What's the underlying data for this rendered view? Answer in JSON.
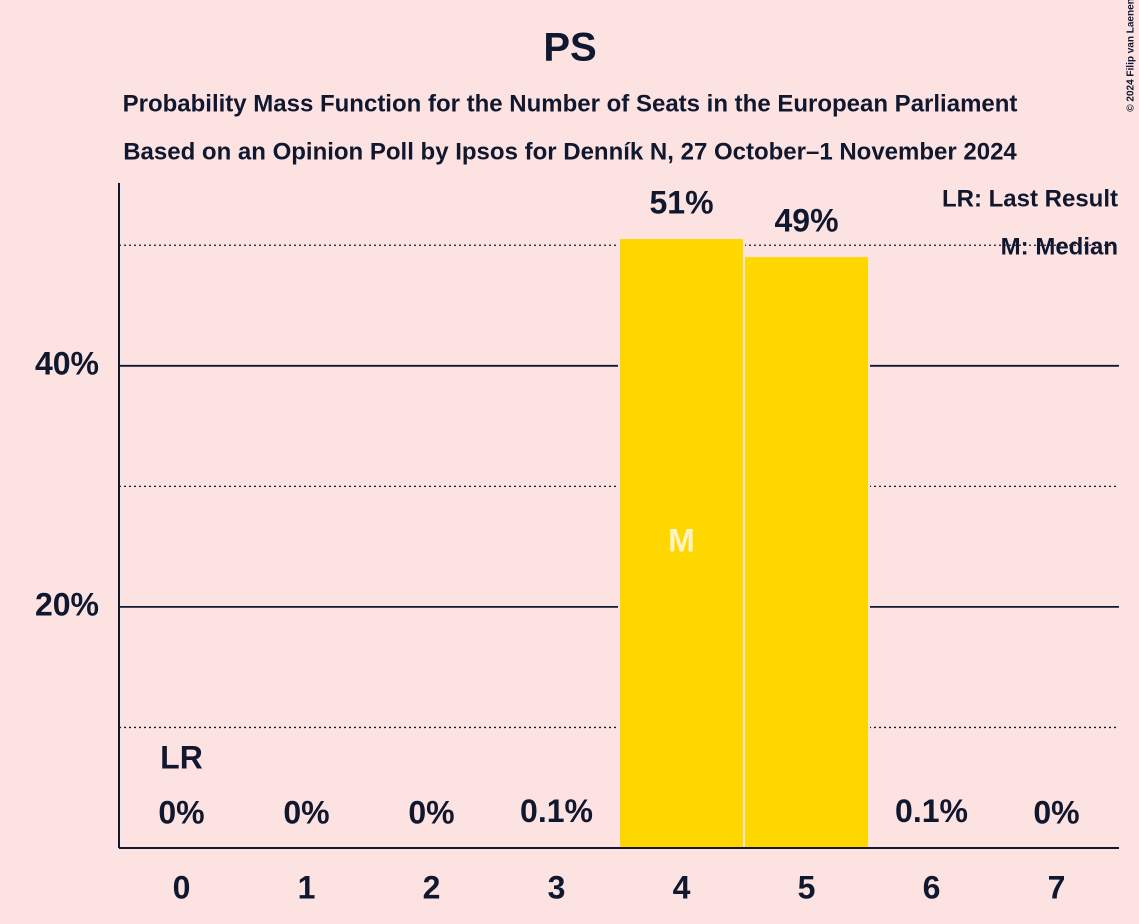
{
  "chart_data": {
    "type": "bar",
    "title": "PS",
    "subtitles": [
      "Probability Mass Function for the Number of Seats in the European Parliament",
      "Based on an Opinion Poll by Ipsos for Denník N, 27 October–1 November 2024"
    ],
    "categories": [
      "0",
      "1",
      "2",
      "3",
      "4",
      "5",
      "6",
      "7"
    ],
    "values": [
      0,
      0,
      0,
      0.1,
      50.6,
      49.1,
      0.1,
      0
    ],
    "value_labels": [
      "0%",
      "0%",
      "0%",
      "0.1%",
      "51%",
      "49%",
      "0.1%",
      "0%"
    ],
    "color": "#FFD700",
    "ylim": [
      0,
      55
    ],
    "yticks": [
      {
        "value": 20,
        "label": "20%"
      },
      {
        "value": 40,
        "label": "40%"
      }
    ],
    "minor_yticks": [
      10,
      30,
      50
    ],
    "markers": {
      "last_result": {
        "label": "LR",
        "category": "0"
      },
      "median": {
        "label": "M",
        "category": "4"
      }
    },
    "legend": [
      "LR: Last Result",
      "M: Median"
    ],
    "copyright": "© 2024 Filip van Laenen"
  }
}
